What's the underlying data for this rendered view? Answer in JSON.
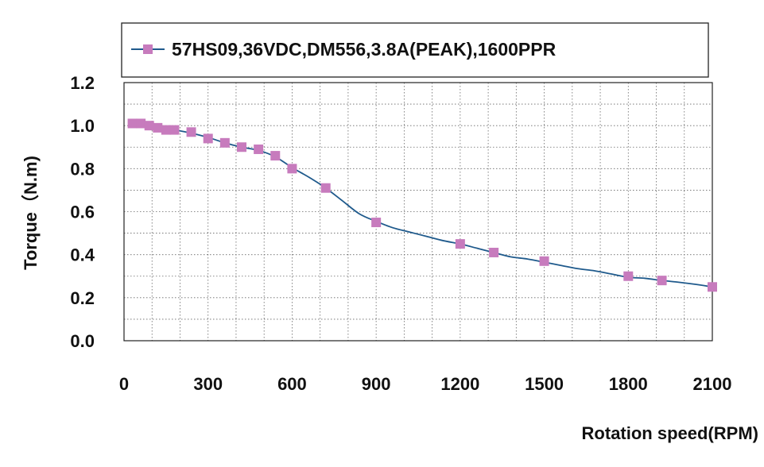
{
  "chart_data": {
    "type": "line",
    "xlabel": "Rotation speed(RPM)",
    "ylabel": "Torque（N.m)",
    "xlim": [
      0,
      2100
    ],
    "ylim": [
      0,
      1.2
    ],
    "xticks": [
      "0",
      "300",
      "600",
      "900",
      "1200",
      "1500",
      "1800",
      "2100"
    ],
    "yticks": [
      "0.0",
      "0.2",
      "0.4",
      "0.6",
      "0.8",
      "1.0",
      "1.2"
    ],
    "grid": "dotted",
    "legend_position": "top",
    "series": [
      {
        "name": "57HS09,36VDC,DM556,3.8A(PEAK),1600PPR",
        "line_color": "#1f5a8c",
        "marker_color": "#c77bbd",
        "marker": "square",
        "markers": [
          {
            "x": 30,
            "y": 1.01
          },
          {
            "x": 60,
            "y": 1.01
          },
          {
            "x": 90,
            "y": 1.0
          },
          {
            "x": 120,
            "y": 0.99
          },
          {
            "x": 150,
            "y": 0.98
          },
          {
            "x": 180,
            "y": 0.98
          },
          {
            "x": 240,
            "y": 0.97
          },
          {
            "x": 300,
            "y": 0.94
          },
          {
            "x": 360,
            "y": 0.92
          },
          {
            "x": 420,
            "y": 0.9
          },
          {
            "x": 480,
            "y": 0.89
          },
          {
            "x": 540,
            "y": 0.86
          },
          {
            "x": 600,
            "y": 0.8
          },
          {
            "x": 720,
            "y": 0.71
          },
          {
            "x": 900,
            "y": 0.55
          },
          {
            "x": 1200,
            "y": 0.45
          },
          {
            "x": 1320,
            "y": 0.41
          },
          {
            "x": 1500,
            "y": 0.37
          },
          {
            "x": 1800,
            "y": 0.3
          },
          {
            "x": 1920,
            "y": 0.28
          },
          {
            "x": 2100,
            "y": 0.25
          }
        ],
        "curve": [
          {
            "x": 30,
            "y": 1.01
          },
          {
            "x": 60,
            "y": 1.01
          },
          {
            "x": 90,
            "y": 1.0
          },
          {
            "x": 120,
            "y": 0.99
          },
          {
            "x": 150,
            "y": 0.98
          },
          {
            "x": 180,
            "y": 0.98
          },
          {
            "x": 240,
            "y": 0.965
          },
          {
            "x": 300,
            "y": 0.945
          },
          {
            "x": 360,
            "y": 0.92
          },
          {
            "x": 420,
            "y": 0.9
          },
          {
            "x": 480,
            "y": 0.885
          },
          {
            "x": 540,
            "y": 0.855
          },
          {
            "x": 600,
            "y": 0.805
          },
          {
            "x": 660,
            "y": 0.76
          },
          {
            "x": 720,
            "y": 0.71
          },
          {
            "x": 780,
            "y": 0.65
          },
          {
            "x": 840,
            "y": 0.59
          },
          {
            "x": 900,
            "y": 0.555
          },
          {
            "x": 960,
            "y": 0.525
          },
          {
            "x": 1020,
            "y": 0.505
          },
          {
            "x": 1080,
            "y": 0.485
          },
          {
            "x": 1140,
            "y": 0.465
          },
          {
            "x": 1200,
            "y": 0.45
          },
          {
            "x": 1260,
            "y": 0.43
          },
          {
            "x": 1320,
            "y": 0.41
          },
          {
            "x": 1380,
            "y": 0.39
          },
          {
            "x": 1440,
            "y": 0.38
          },
          {
            "x": 1500,
            "y": 0.365
          },
          {
            "x": 1560,
            "y": 0.35
          },
          {
            "x": 1620,
            "y": 0.335
          },
          {
            "x": 1680,
            "y": 0.325
          },
          {
            "x": 1740,
            "y": 0.31
          },
          {
            "x": 1800,
            "y": 0.295
          },
          {
            "x": 1860,
            "y": 0.29
          },
          {
            "x": 1920,
            "y": 0.28
          },
          {
            "x": 1980,
            "y": 0.272
          },
          {
            "x": 2040,
            "y": 0.262
          },
          {
            "x": 2100,
            "y": 0.25
          }
        ]
      }
    ]
  }
}
